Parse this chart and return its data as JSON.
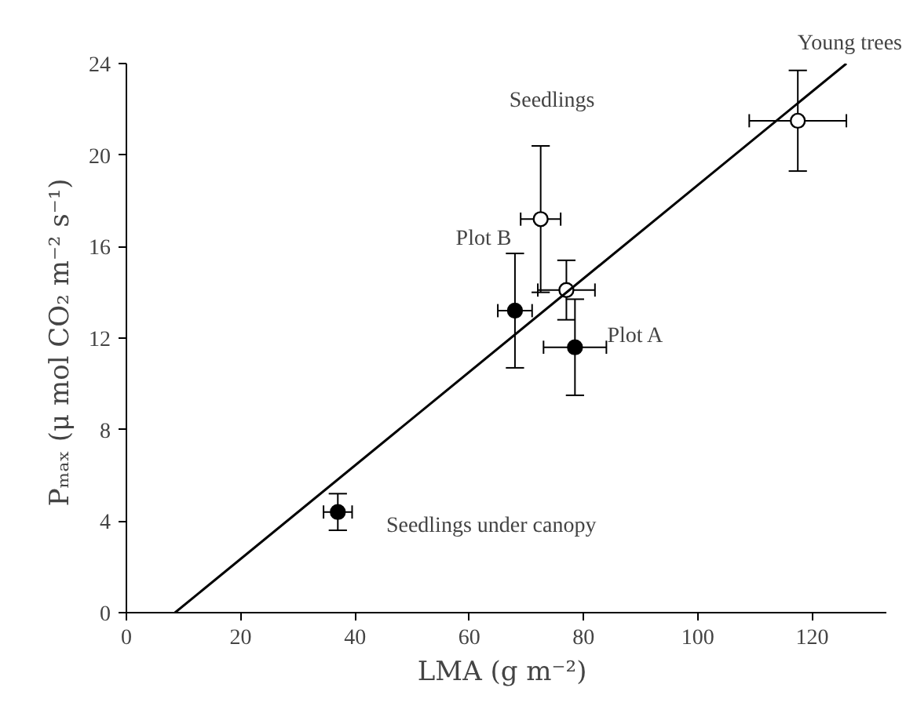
{
  "chart_data": {
    "type": "scatter",
    "xlabel": "LMA  (g m⁻²)",
    "ylabel": "Pₘₐₓ  (μ mol CO₂ m⁻² s⁻¹)",
    "xlim": [
      0,
      133
    ],
    "ylim": [
      0,
      24
    ],
    "xticks": [
      0,
      20,
      40,
      60,
      80,
      100,
      120
    ],
    "yticks": [
      0,
      4,
      8,
      12,
      16,
      20,
      24
    ],
    "grid": false,
    "marker": "circle",
    "series": [
      {
        "color": "#000000",
        "x": [
          37,
          68,
          78.5
        ],
        "values": [
          4.4,
          13.2,
          11.6
        ],
        "errors": [
          0.8,
          2.5,
          2.1
        ],
        "xerrors": [
          2.5,
          3,
          5.5
        ]
      },
      {
        "color": "#ffffff",
        "x": [
          72.5,
          77,
          117.5
        ],
        "values": [
          17.2,
          14.1,
          21.5
        ],
        "errors": [
          3.2,
          1.3,
          2.2
        ],
        "xerrors": [
          3.5,
          5,
          8.5
        ]
      },
      {
        "type": "line",
        "marker": "none",
        "color": "#000000",
        "x": [
          8.5,
          126
        ],
        "values": [
          0,
          24
        ]
      }
    ],
    "annotations": [
      "Seedlings",
      "Plot B",
      "Plot A",
      "Seedlings under canopy",
      "Young trees"
    ]
  }
}
